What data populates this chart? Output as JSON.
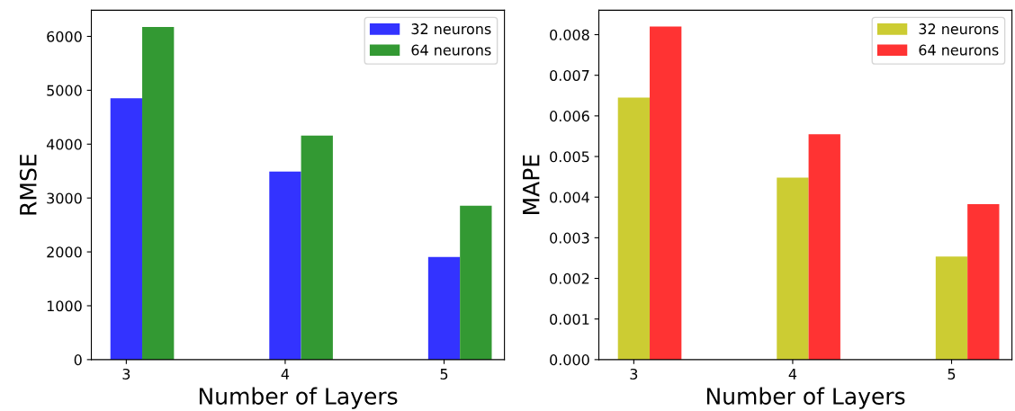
{
  "chart_data": [
    {
      "type": "bar",
      "xlabel": "Number of Layers",
      "ylabel": "RMSE",
      "categories": [
        "3",
        "4",
        "5"
      ],
      "series": [
        {
          "name": "32 neurons",
          "color": "#3333ff",
          "values": [
            4850,
            3490,
            1905
          ]
        },
        {
          "name": "64 neurons",
          "color": "#339933",
          "values": [
            6175,
            4160,
            2855
          ]
        }
      ],
      "ylim": [
        0,
        6485
      ],
      "yticks": [
        0,
        1000,
        2000,
        3000,
        4000,
        5000,
        6000
      ],
      "legend": "top right"
    },
    {
      "type": "bar",
      "xlabel": "Number of Layers",
      "ylabel": "MAPE",
      "categories": [
        "3",
        "4",
        "5"
      ],
      "series": [
        {
          "name": "32 neurons",
          "color": "#cccc33",
          "values": [
            0.00645,
            0.00448,
            0.00254
          ]
        },
        {
          "name": "64 neurons",
          "color": "#ff3333",
          "values": [
            0.0082,
            0.00555,
            0.00383
          ]
        }
      ],
      "ylim": [
        0,
        0.0086
      ],
      "yticks": [
        {
          "value": 0,
          "label": "0.000"
        },
        {
          "value": 0.001,
          "label": "0.001"
        },
        {
          "value": 0.002,
          "label": "0.002"
        },
        {
          "value": 0.003,
          "label": "0.003"
        },
        {
          "value": 0.004,
          "label": "0.004"
        },
        {
          "value": 0.005,
          "label": "0.005"
        },
        {
          "value": 0.006,
          "label": "0.006"
        },
        {
          "value": 0.007,
          "label": "0.007"
        },
        {
          "value": 0.008,
          "label": "0.008"
        }
      ],
      "legend": "top right"
    }
  ]
}
